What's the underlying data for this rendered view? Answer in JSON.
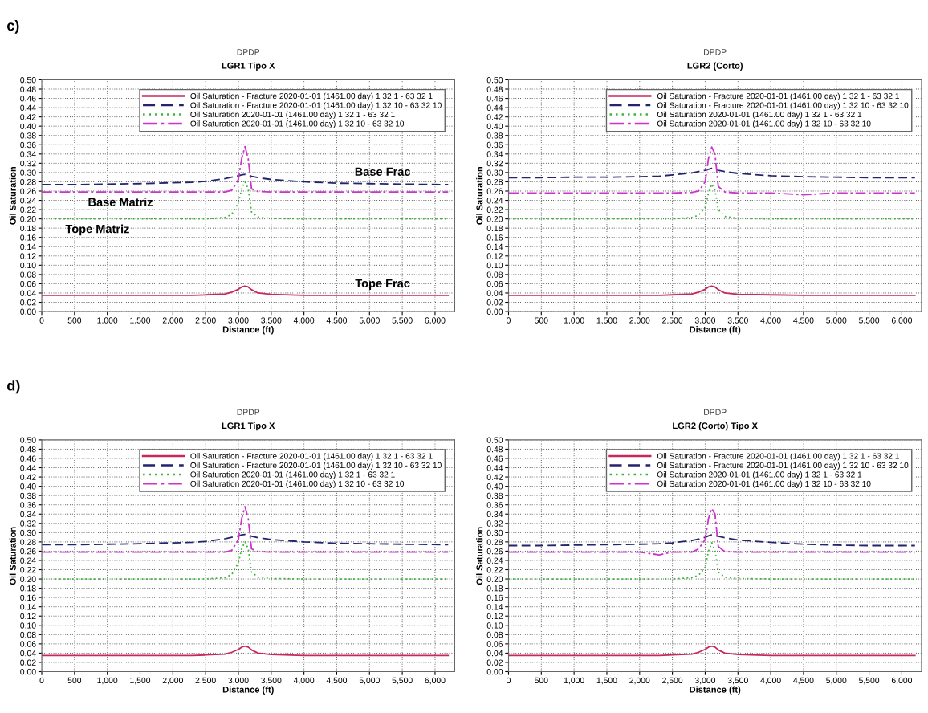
{
  "chart_data": [
    {
      "type": "line",
      "title": "DPDP",
      "subtitle": "LGR1 Tipo X",
      "xlabel": "Distance (ft)",
      "ylabel": "Oil Saturation",
      "x": [
        0,
        500,
        1000,
        1500,
        2000,
        2300,
        2500,
        2800,
        2900,
        3000,
        3050,
        3100,
        3150,
        3200,
        3300,
        3500,
        4000,
        4500,
        5000,
        5500,
        6200
      ],
      "series": [
        {
          "name": "Oil Saturation - Fracture 2020-01-01 (1461.00 day) 1 32 1 - 63 32 1",
          "color": "#c8285a",
          "line_style": "solid",
          "values": [
            0.035,
            0.035,
            0.035,
            0.035,
            0.035,
            0.035,
            0.036,
            0.038,
            0.042,
            0.048,
            0.053,
            0.055,
            0.053,
            0.047,
            0.04,
            0.037,
            0.035,
            0.035,
            0.035,
            0.035,
            0.035
          ]
        },
        {
          "name": "Oil Saturation - Fracture 2020-01-01 (1461.00 day) 1 32 10 - 63 32 10",
          "color": "#24246e",
          "line_style": "dashed",
          "values": [
            0.274,
            0.274,
            0.275,
            0.276,
            0.278,
            0.279,
            0.281,
            0.287,
            0.29,
            0.293,
            0.295,
            0.296,
            0.295,
            0.292,
            0.289,
            0.285,
            0.28,
            0.277,
            0.276,
            0.275,
            0.274
          ]
        },
        {
          "name": "Oil Saturation 2020-01-01 (1461.00 day) 1 32 1 - 63 32 1",
          "color": "#3cb43c",
          "line_style": "dotted",
          "values": [
            0.2,
            0.2,
            0.2,
            0.2,
            0.2,
            0.2,
            0.2,
            0.203,
            0.21,
            0.235,
            0.265,
            0.28,
            0.265,
            0.215,
            0.204,
            0.201,
            0.2,
            0.2,
            0.2,
            0.2,
            0.2
          ]
        },
        {
          "name": "Oil Saturation 2020-01-01 (1461.00 day) 1 32 10 - 63 32 10",
          "color": "#cc33cc",
          "line_style": "dashdot",
          "values": [
            0.258,
            0.258,
            0.258,
            0.258,
            0.258,
            0.258,
            0.258,
            0.258,
            0.262,
            0.285,
            0.33,
            0.356,
            0.33,
            0.265,
            0.259,
            0.258,
            0.258,
            0.258,
            0.258,
            0.258,
            0.258
          ]
        }
      ],
      "xlim": [
        0,
        6300
      ],
      "ylim": [
        0,
        0.5
      ],
      "xticks": [
        0,
        500,
        {
          "value": 1000,
          "label": "1,000"
        },
        {
          "value": 1500,
          "label": "1,500"
        },
        {
          "value": 2000,
          "label": "2,000"
        },
        {
          "value": 2500,
          "label": "2,500"
        },
        {
          "value": 3000,
          "label": "3,000"
        },
        {
          "value": 3500,
          "label": "3,500"
        },
        {
          "value": 4000,
          "label": "4,000"
        },
        {
          "value": 4500,
          "label": "4,500"
        },
        {
          "value": 5000,
          "label": "5,000"
        },
        {
          "value": 5500,
          "label": "5,500"
        },
        {
          "value": 6000,
          "label": "6,000"
        }
      ],
      "yticks": [
        {
          "value": 0,
          "label": "0.00"
        },
        0.02,
        0.04,
        0.06,
        0.08,
        {
          "value": 0.1,
          "label": "0.10"
        },
        0.12,
        0.14,
        0.16,
        0.18,
        {
          "value": 0.2,
          "label": "0.20"
        },
        0.22,
        0.24,
        0.26,
        0.28,
        {
          "value": 0.3,
          "label": "0.30"
        },
        0.32,
        0.34,
        0.36,
        0.38,
        {
          "value": 0.4,
          "label": "0.40"
        },
        0.42,
        0.44,
        0.46,
        0.48,
        {
          "value": 0.5,
          "label": "0.50"
        }
      ],
      "grid": true,
      "legend": "top right",
      "annotations": [
        "c)",
        {
          "text": "Base Frac",
          "x": 5200,
          "y": 0.276
        },
        {
          "text": "Base Matriz",
          "x": 1200,
          "y": 0.258
        },
        {
          "text": "Tope Matriz",
          "x": 850,
          "y": 0.2
        },
        {
          "text": "Tope Frac",
          "x": 5200,
          "y": 0.035
        }
      ]
    },
    {
      "type": "line",
      "title": "DPDP",
      "subtitle": "LGR2 (Corto)",
      "xlabel": "Distance (ft)",
      "ylabel": "Oil Saturation",
      "x": [
        0,
        500,
        1000,
        1500,
        2000,
        2300,
        2500,
        2800,
        2900,
        3000,
        3050,
        3100,
        3150,
        3200,
        3300,
        3500,
        4000,
        4500,
        5000,
        5500,
        6200
      ],
      "series": [
        {
          "name": "Oil Saturation - Fracture 2020-01-01 (1461.00 day) 1 32 1 - 63 32 1",
          "color": "#c8285a",
          "line_style": "solid",
          "values": [
            0.035,
            0.035,
            0.035,
            0.035,
            0.035,
            0.035,
            0.036,
            0.038,
            0.042,
            0.048,
            0.053,
            0.055,
            0.053,
            0.047,
            0.04,
            0.037,
            0.036,
            0.035,
            0.035,
            0.035,
            0.035
          ]
        },
        {
          "name": "Oil Saturation - Fracture 2020-01-01 (1461.00 day) 1 32 10 - 63 32 10",
          "color": "#24246e",
          "line_style": "dashed",
          "values": [
            0.289,
            0.289,
            0.29,
            0.29,
            0.291,
            0.292,
            0.295,
            0.299,
            0.302,
            0.305,
            0.307,
            0.309,
            0.308,
            0.305,
            0.302,
            0.298,
            0.293,
            0.291,
            0.29,
            0.289,
            0.289
          ]
        },
        {
          "name": "Oil Saturation 2020-01-01 (1461.00 day) 1 32 1 - 63 32 1",
          "color": "#3cb43c",
          "line_style": "dotted",
          "values": [
            0.2,
            0.2,
            0.2,
            0.2,
            0.2,
            0.2,
            0.2,
            0.203,
            0.208,
            0.225,
            0.255,
            0.275,
            0.262,
            0.22,
            0.205,
            0.201,
            0.2,
            0.2,
            0.2,
            0.2,
            0.2
          ]
        },
        {
          "name": "Oil Saturation 2020-01-01 (1461.00 day) 1 32 10 - 63 32 10",
          "color": "#cc33cc",
          "line_style": "dashdot",
          "values": [
            0.256,
            0.256,
            0.256,
            0.256,
            0.256,
            0.256,
            0.256,
            0.257,
            0.26,
            0.28,
            0.33,
            0.355,
            0.34,
            0.27,
            0.258,
            0.256,
            0.256,
            0.252,
            0.256,
            0.256,
            0.256
          ]
        }
      ],
      "xlim": [
        0,
        6300
      ],
      "ylim": [
        0,
        0.5
      ],
      "xticks": [
        0,
        500,
        {
          "value": 1000,
          "label": "1,000"
        },
        {
          "value": 1500,
          "label": "1,500"
        },
        {
          "value": 2000,
          "label": "2,000"
        },
        {
          "value": 2500,
          "label": "2,500"
        },
        {
          "value": 3000,
          "label": "3,000"
        },
        {
          "value": 3500,
          "label": "3,500"
        },
        {
          "value": 4000,
          "label": "4,000"
        },
        {
          "value": 4500,
          "label": "4,500"
        },
        {
          "value": 5000,
          "label": "5,000"
        },
        {
          "value": 5500,
          "label": "5,500"
        },
        {
          "value": 6000,
          "label": "6,000"
        }
      ],
      "yticks": [
        {
          "value": 0,
          "label": "0.00"
        },
        0.02,
        0.04,
        0.06,
        0.08,
        {
          "value": 0.1,
          "label": "0.10"
        },
        0.12,
        0.14,
        0.16,
        0.18,
        {
          "value": 0.2,
          "label": "0.20"
        },
        0.22,
        0.24,
        0.26,
        0.28,
        {
          "value": 0.3,
          "label": "0.30"
        },
        0.32,
        0.34,
        0.36,
        0.38,
        {
          "value": 0.4,
          "label": "0.40"
        },
        0.42,
        0.44,
        0.46,
        0.48,
        {
          "value": 0.5,
          "label": "0.50"
        }
      ],
      "grid": true,
      "legend": "top right"
    },
    {
      "type": "line",
      "title": "DPDP",
      "subtitle": "LGR1 Tipo X",
      "xlabel": "Distance (ft)",
      "ylabel": "Oil Saturation",
      "x": [
        0,
        500,
        1000,
        1500,
        2000,
        2300,
        2500,
        2800,
        2900,
        3000,
        3050,
        3100,
        3150,
        3200,
        3300,
        3500,
        4000,
        4500,
        5000,
        5500,
        6200
      ],
      "series": [
        {
          "name": "Oil Saturation - Fracture 2020-01-01 (1461.00 day) 1 32 1 - 63 32 1",
          "color": "#c8285a",
          "line_style": "solid",
          "values": [
            0.035,
            0.035,
            0.035,
            0.035,
            0.035,
            0.035,
            0.036,
            0.038,
            0.042,
            0.048,
            0.053,
            0.055,
            0.053,
            0.047,
            0.04,
            0.037,
            0.035,
            0.035,
            0.035,
            0.035,
            0.035
          ]
        },
        {
          "name": "Oil Saturation - Fracture 2020-01-01 (1461.00 day) 1 32 10 - 63 32 10",
          "color": "#24246e",
          "line_style": "dashed",
          "values": [
            0.274,
            0.274,
            0.275,
            0.276,
            0.278,
            0.279,
            0.281,
            0.287,
            0.29,
            0.293,
            0.295,
            0.296,
            0.295,
            0.292,
            0.289,
            0.285,
            0.28,
            0.277,
            0.276,
            0.275,
            0.274
          ]
        },
        {
          "name": "Oil Saturation 2020-01-01 (1461.00 day) 1 32 1 - 63 32 1",
          "color": "#3cb43c",
          "line_style": "dotted",
          "values": [
            0.2,
            0.2,
            0.2,
            0.2,
            0.2,
            0.2,
            0.2,
            0.203,
            0.21,
            0.235,
            0.265,
            0.28,
            0.265,
            0.215,
            0.204,
            0.201,
            0.2,
            0.2,
            0.2,
            0.2,
            0.2
          ]
        },
        {
          "name": "Oil Saturation 2020-01-01 (1461.00 day) 1 32 10 - 63 32 10",
          "color": "#cc33cc",
          "line_style": "dashdot",
          "values": [
            0.258,
            0.258,
            0.258,
            0.258,
            0.258,
            0.258,
            0.258,
            0.258,
            0.262,
            0.285,
            0.33,
            0.356,
            0.33,
            0.265,
            0.259,
            0.258,
            0.258,
            0.258,
            0.258,
            0.258,
            0.258
          ]
        }
      ],
      "xlim": [
        0,
        6300
      ],
      "ylim": [
        0,
        0.5
      ],
      "xticks": [
        0,
        500,
        {
          "value": 1000,
          "label": "1,000"
        },
        {
          "value": 1500,
          "label": "1,500"
        },
        {
          "value": 2000,
          "label": "2,000"
        },
        {
          "value": 2500,
          "label": "2,500"
        },
        {
          "value": 3000,
          "label": "3,000"
        },
        {
          "value": 3500,
          "label": "3,500"
        },
        {
          "value": 4000,
          "label": "4,000"
        },
        {
          "value": 4500,
          "label": "4,500"
        },
        {
          "value": 5000,
          "label": "5,000"
        },
        {
          "value": 5500,
          "label": "5,500"
        },
        {
          "value": 6000,
          "label": "6,000"
        }
      ],
      "yticks": [
        {
          "value": 0,
          "label": "0.00"
        },
        0.02,
        0.04,
        0.06,
        0.08,
        {
          "value": 0.1,
          "label": "0.10"
        },
        0.12,
        0.14,
        0.16,
        0.18,
        {
          "value": 0.2,
          "label": "0.20"
        },
        0.22,
        0.24,
        0.26,
        0.28,
        {
          "value": 0.3,
          "label": "0.30"
        },
        0.32,
        0.34,
        0.36,
        0.38,
        {
          "value": 0.4,
          "label": "0.40"
        },
        0.42,
        0.44,
        0.46,
        0.48,
        {
          "value": 0.5,
          "label": "0.50"
        }
      ],
      "grid": true,
      "legend": "top right",
      "annotations": [
        "d)"
      ]
    },
    {
      "type": "line",
      "title": "DPDP",
      "subtitle": "LGR2 (Corto) Tipo X",
      "xlabel": "Distance (ft)",
      "ylabel": "Oil Saturation",
      "x": [
        0,
        500,
        1000,
        1500,
        2000,
        2300,
        2500,
        2800,
        2900,
        3000,
        3050,
        3100,
        3150,
        3200,
        3300,
        3500,
        4000,
        4500,
        5000,
        5500,
        6200
      ],
      "series": [
        {
          "name": "Oil Saturation - Fracture 2020-01-01 (1461.00 day) 1 32 1 - 63 32 1",
          "color": "#c8285a",
          "line_style": "solid",
          "values": [
            0.035,
            0.035,
            0.035,
            0.035,
            0.035,
            0.035,
            0.036,
            0.038,
            0.042,
            0.048,
            0.053,
            0.055,
            0.053,
            0.047,
            0.04,
            0.037,
            0.035,
            0.035,
            0.035,
            0.035,
            0.035
          ]
        },
        {
          "name": "Oil Saturation - Fracture 2020-01-01 (1461.00 day) 1 32 10 - 63 32 10",
          "color": "#24246e",
          "line_style": "dashed",
          "values": [
            0.272,
            0.272,
            0.273,
            0.274,
            0.275,
            0.276,
            0.278,
            0.283,
            0.286,
            0.29,
            0.293,
            0.295,
            0.294,
            0.292,
            0.289,
            0.284,
            0.279,
            0.275,
            0.273,
            0.272,
            0.272
          ]
        },
        {
          "name": "Oil Saturation 2020-01-01 (1461.00 day) 1 32 1 - 63 32 1",
          "color": "#3cb43c",
          "line_style": "dotted",
          "values": [
            0.2,
            0.2,
            0.2,
            0.2,
            0.2,
            0.2,
            0.2,
            0.203,
            0.208,
            0.225,
            0.26,
            0.278,
            0.262,
            0.215,
            0.204,
            0.201,
            0.2,
            0.2,
            0.2,
            0.2,
            0.2
          ]
        },
        {
          "name": "Oil Saturation 2020-01-01 (1461.00 day) 1 32 10 - 63 32 10",
          "color": "#cc33cc",
          "line_style": "dashdot",
          "values": [
            0.258,
            0.258,
            0.258,
            0.258,
            0.258,
            0.252,
            0.258,
            0.258,
            0.265,
            0.285,
            0.33,
            0.352,
            0.34,
            0.27,
            0.259,
            0.258,
            0.258,
            0.258,
            0.258,
            0.258,
            0.258
          ]
        }
      ],
      "xlim": [
        0,
        6300
      ],
      "ylim": [
        0,
        0.5
      ],
      "xticks": [
        0,
        500,
        {
          "value": 1000,
          "label": "1,000"
        },
        {
          "value": 1500,
          "label": "1,500"
        },
        {
          "value": 2000,
          "label": "2,000"
        },
        {
          "value": 2500,
          "label": "2,500"
        },
        {
          "value": 3000,
          "label": "3,000"
        },
        {
          "value": 3500,
          "label": "3,500"
        },
        {
          "value": 4000,
          "label": "4,000"
        },
        {
          "value": 4500,
          "label": "4,500"
        },
        {
          "value": 5000,
          "label": "5,000"
        },
        {
          "value": 5500,
          "label": "5,500"
        },
        {
          "value": 6000,
          "label": "6,000"
        }
      ],
      "yticks": [
        {
          "value": 0,
          "label": "0.00"
        },
        0.02,
        0.04,
        0.06,
        0.08,
        {
          "value": 0.1,
          "label": "0.10"
        },
        0.12,
        0.14,
        0.16,
        0.18,
        {
          "value": 0.2,
          "label": "0.20"
        },
        0.22,
        0.24,
        0.26,
        0.28,
        {
          "value": 0.3,
          "label": "0.30"
        },
        0.32,
        0.34,
        0.36,
        0.38,
        {
          "value": 0.4,
          "label": "0.40"
        },
        0.42,
        0.44,
        0.46,
        0.48,
        {
          "value": 0.5,
          "label": "0.50"
        }
      ],
      "grid": true,
      "legend": "top right"
    }
  ]
}
